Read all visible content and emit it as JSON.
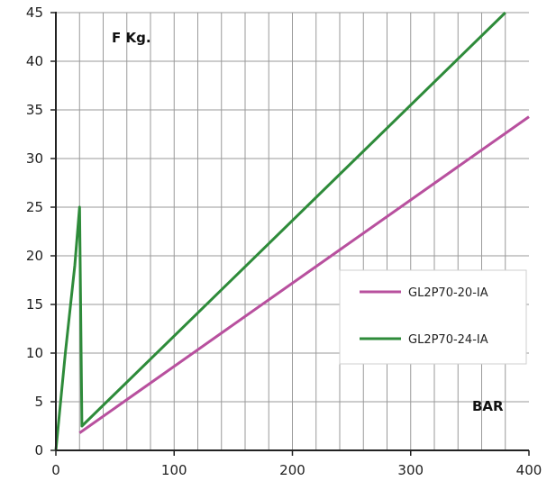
{
  "colors": {
    "background": "#ffffff",
    "grid": "#9a9a9a",
    "axis": "#222222",
    "series_1": "#b8509e",
    "series_2": "#2e8b3a",
    "legend_border": "#cfcfcf"
  },
  "chart_data": {
    "type": "line",
    "title": "",
    "ylabel": "F Kg.",
    "xlabel": "BAR",
    "xlim": [
      0,
      400
    ],
    "ylim": [
      0,
      45
    ],
    "x_ticks": [
      0,
      100,
      200,
      300,
      400
    ],
    "x_tick_labels": [
      "0",
      "100",
      "200",
      "300",
      "400"
    ],
    "x_minor_step": 20,
    "y_ticks": [
      0,
      5,
      10,
      15,
      20,
      25,
      30,
      35,
      40,
      45
    ],
    "y_tick_labels": [
      "0",
      "5",
      "10",
      "15",
      "20",
      "25",
      "30",
      "35",
      "40",
      "45"
    ],
    "grid": true,
    "legend_position": "right",
    "series": [
      {
        "name": "GL2P70-20-IA",
        "color": "#b8509e",
        "x": [
          20,
          400
        ],
        "y": [
          1.8,
          34.3
        ]
      },
      {
        "name": "GL2P70-24-IA",
        "color": "#2e8b3a",
        "x": [
          0,
          8,
          16,
          20,
          22,
          380
        ],
        "y": [
          0,
          10,
          19,
          25,
          2.5,
          45
        ]
      }
    ]
  }
}
